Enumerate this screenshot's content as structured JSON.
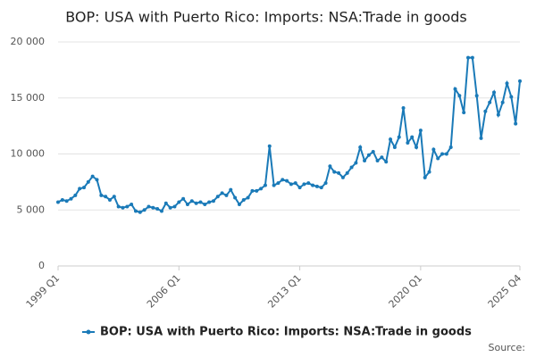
{
  "chart_data": {
    "type": "line",
    "title": "BOP: USA with Puerto Rico: Imports: NSA:Trade in goods",
    "source": "Source:",
    "categories": [
      "1999 Q1",
      null,
      null,
      null,
      null,
      null,
      null,
      null,
      null,
      null,
      null,
      null,
      null,
      null,
      null,
      null,
      null,
      null,
      null,
      null,
      null,
      null,
      null,
      null,
      null,
      null,
      null,
      null,
      "2006 Q1",
      null,
      null,
      null,
      null,
      null,
      null,
      null,
      null,
      null,
      null,
      null,
      null,
      null,
      null,
      null,
      null,
      null,
      null,
      null,
      null,
      null,
      null,
      null,
      null,
      null,
      null,
      null,
      "2013 Q1",
      null,
      null,
      null,
      null,
      null,
      null,
      null,
      null,
      null,
      null,
      null,
      null,
      null,
      null,
      null,
      null,
      null,
      null,
      null,
      null,
      null,
      null,
      null,
      null,
      null,
      null,
      null,
      "2020 Q1",
      null,
      null,
      null,
      null,
      null,
      null,
      null,
      null,
      null,
      null,
      null,
      null,
      null,
      null,
      null,
      null,
      null,
      null,
      null,
      null,
      null,
      null,
      "2025 Q4"
    ],
    "series": [
      {
        "name": "BOP: USA with Puerto Rico: Imports: NSA:Trade in goods",
        "color": "#1a7ab8",
        "values": [
          5700,
          5900,
          5800,
          6000,
          6300,
          6900,
          7000,
          7500,
          8000,
          7700,
          6300,
          6200,
          5900,
          6200,
          5300,
          5200,
          5300,
          5500,
          4900,
          4800,
          5000,
          5300,
          5200,
          5100,
          4900,
          5600,
          5200,
          5300,
          5700,
          6000,
          5500,
          5800,
          5600,
          5700,
          5500,
          5700,
          5800,
          6200,
          6500,
          6300,
          6800,
          6100,
          5500,
          5900,
          6100,
          6700,
          6700,
          6900,
          7200,
          10700,
          7200,
          7400,
          7700,
          7600,
          7300,
          7400,
          7000,
          7300,
          7400,
          7200,
          7100,
          7000,
          7400,
          8900,
          8400,
          8300,
          7900,
          8300,
          8800,
          9200,
          10600,
          9400,
          9900,
          10200,
          9400,
          9700,
          9300,
          11300,
          10600,
          11500,
          14100,
          11000,
          11500,
          10600,
          12100,
          7900,
          8400,
          10400,
          9600,
          10000,
          10000,
          10600,
          15800,
          15200,
          13700,
          18600,
          18600,
          15200,
          11400,
          13800,
          14600,
          15500,
          13500,
          14600,
          16300,
          15100,
          12700,
          16500
        ]
      }
    ],
    "ylim": [
      0,
      20000
    ],
    "yticks": [
      {
        "value": 0,
        "label": "0"
      },
      {
        "value": 5000,
        "label": "5 000"
      },
      {
        "value": 10000,
        "label": "10 000"
      },
      {
        "value": 15000,
        "label": "15 000"
      },
      {
        "value": 20000,
        "label": "20 000"
      }
    ],
    "grid": true,
    "legend": "bottom"
  }
}
